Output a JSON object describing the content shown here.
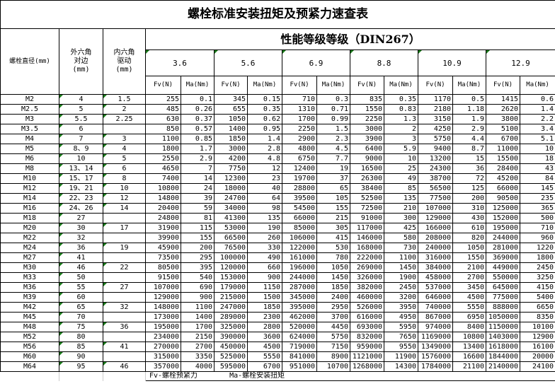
{
  "title": "螺栓标准安装扭矩及预紧力速查表",
  "headers": {
    "diameter": "螺栓直径(mm)",
    "hex_outer": "外六角对边(mm)",
    "hex_inner": "内六角驱动(mm)",
    "performance": "性能等级等级（DIN267）",
    "grades": [
      "3.6",
      "5.6",
      "6.9",
      "8.8",
      "10.9",
      "12.9"
    ],
    "fv": "Fv(N)",
    "ma": "Ma(Nm)"
  },
  "rows": [
    [
      "M2",
      "4",
      "1.5",
      "255",
      "0.1",
      "345",
      "0.15",
      "710",
      "0.3",
      "835",
      "0.35",
      "1170",
      "0.5",
      "1415",
      "0.6"
    ],
    [
      "M2.5",
      "5",
      "2",
      "485",
      "0.26",
      "655",
      "0.35",
      "1310",
      "0.71",
      "1550",
      "0.83",
      "2180",
      "1.18",
      "2620",
      "1.4"
    ],
    [
      "M3",
      "5.5",
      "2.25",
      "630",
      "0.37",
      "1050",
      "0.62",
      "1700",
      "0.99",
      "2250",
      "1.3",
      "3150",
      "1.9",
      "3800",
      "2.2"
    ],
    [
      "M3.5",
      "6",
      "",
      "850",
      "0.57",
      "1400",
      "0.95",
      "2250",
      "1.5",
      "3000",
      "2",
      "4250",
      "2.9",
      "5100",
      "3.4"
    ],
    [
      "M4",
      "7",
      "3",
      "1100",
      "0.85",
      "1850",
      "1.4",
      "2900",
      "2.3",
      "3900",
      "3",
      "5750",
      "4.4",
      "6700",
      "5.1"
    ],
    [
      "M5",
      "8、9",
      "4",
      "1800",
      "1.7",
      "3000",
      "2.8",
      "4800",
      "4.5",
      "6400",
      "5.9",
      "9400",
      "8.7",
      "11000",
      "10"
    ],
    [
      "M6",
      "10",
      "5",
      "2550",
      "2.9",
      "4200",
      "4.8",
      "6750",
      "7.7",
      "9000",
      "10",
      "13200",
      "15",
      "15500",
      "18"
    ],
    [
      "M8",
      "13、14",
      "6",
      "4650",
      "7",
      "7750",
      "12",
      "12400",
      "19",
      "16500",
      "25",
      "24300",
      "36",
      "28400",
      "43"
    ],
    [
      "M10",
      "15、17",
      "8",
      "7400",
      "14",
      "12300",
      "23",
      "19700",
      "37",
      "26300",
      "49",
      "38700",
      "72",
      "45200",
      "84"
    ],
    [
      "M12",
      "19、21",
      "10",
      "10800",
      "24",
      "18000",
      "40",
      "28800",
      "65",
      "38400",
      "85",
      "56500",
      "125",
      "66000",
      "145"
    ],
    [
      "M14",
      "22、23",
      "12",
      "14800",
      "39",
      "24700",
      "64",
      "39500",
      "105",
      "52500",
      "135",
      "77500",
      "200",
      "90500",
      "235"
    ],
    [
      "M16",
      "24、26",
      "14",
      "20400",
      "59",
      "34000",
      "98",
      "54500",
      "155",
      "72500",
      "210",
      "107000",
      "310",
      "125000",
      "365"
    ],
    [
      "M18",
      "27",
      "",
      "24800",
      "81",
      "41300",
      "135",
      "66000",
      "215",
      "91000",
      "300",
      "129000",
      "430",
      "152000",
      "500"
    ],
    [
      "M20",
      "30",
      "17",
      "31900",
      "115",
      "53000",
      "190",
      "85000",
      "305",
      "117000",
      "425",
      "166000",
      "610",
      "195000",
      "710"
    ],
    [
      "M22",
      "32",
      "",
      "39900",
      "155",
      "66500",
      "260",
      "106000",
      "415",
      "146000",
      "580",
      "208000",
      "820",
      "244000",
      "960"
    ],
    [
      "M24",
      "36",
      "19",
      "45900",
      "200",
      "76500",
      "330",
      "122000",
      "530",
      "168000",
      "730",
      "240000",
      "1050",
      "281000",
      "1220"
    ],
    [
      "M27",
      "41",
      "",
      "73500",
      "295",
      "100000",
      "490",
      "161000",
      "780",
      "222000",
      "1100",
      "316000",
      "1550",
      "369000",
      "1800"
    ],
    [
      "M30",
      "46",
      "22",
      "80500",
      "395",
      "120000",
      "660",
      "196000",
      "1050",
      "269000",
      "1450",
      "384000",
      "2100",
      "449000",
      "2450"
    ],
    [
      "M33",
      "50",
      "",
      "91500",
      "540",
      "153000",
      "900",
      "244000",
      "1450",
      "326000",
      "1900",
      "458000",
      "2700",
      "550000",
      "3250"
    ],
    [
      "M36",
      "55",
      "27",
      "107000",
      "690",
      "179000",
      "1150",
      "287000",
      "1850",
      "382000",
      "2450",
      "537000",
      "3450",
      "645000",
      "4150"
    ],
    [
      "M39",
      "60",
      "",
      "129000",
      "900",
      "215000",
      "1500",
      "345000",
      "2400",
      "460000",
      "3200",
      "646000",
      "4500",
      "775000",
      "5400"
    ],
    [
      "M42",
      "65",
      "32",
      "148000",
      "1100",
      "247000",
      "1850",
      "395000",
      "2950",
      "526000",
      "3950",
      "740000",
      "5550",
      "888000",
      "6650"
    ],
    [
      "M45",
      "70",
      "",
      "173000",
      "1400",
      "289000",
      "2300",
      "462000",
      "3700",
      "616000",
      "4950",
      "867000",
      "6950",
      "1050000",
      "8350"
    ],
    [
      "M48",
      "75",
      "36",
      "195000",
      "1700",
      "325000",
      "2800",
      "520000",
      "4450",
      "693000",
      "5950",
      "974000",
      "8400",
      "1150000",
      "10100"
    ],
    [
      "M52",
      "80",
      "",
      "234000",
      "2150",
      "390000",
      "3600",
      "624000",
      "5750",
      "832000",
      "7650",
      "1169000",
      "10800",
      "1403000",
      "12900"
    ],
    [
      "M56",
      "85",
      "41",
      "270000",
      "2700",
      "450000",
      "4500",
      "719000",
      "7150",
      "959000",
      "9550",
      "1349000",
      "13400",
      "1618000",
      "16100"
    ],
    [
      "M60",
      "90",
      "",
      "315000",
      "3350",
      "525000",
      "5550",
      "841000",
      "8900",
      "1121000",
      "11900",
      "1576000",
      "16600",
      "1844000",
      "20000"
    ],
    [
      "M64",
      "95",
      "46",
      "357000",
      "4000",
      "595000",
      "6700",
      "951000",
      "10700",
      "1268000",
      "14300",
      "1784000",
      "21100",
      "2140000",
      "24100"
    ]
  ],
  "footer": {
    "fv_note": "Fv-螺栓预紧力",
    "ma_note": "Ma-螺栓安装扭矩"
  },
  "colors": {
    "marker": "#1a7a1a"
  }
}
